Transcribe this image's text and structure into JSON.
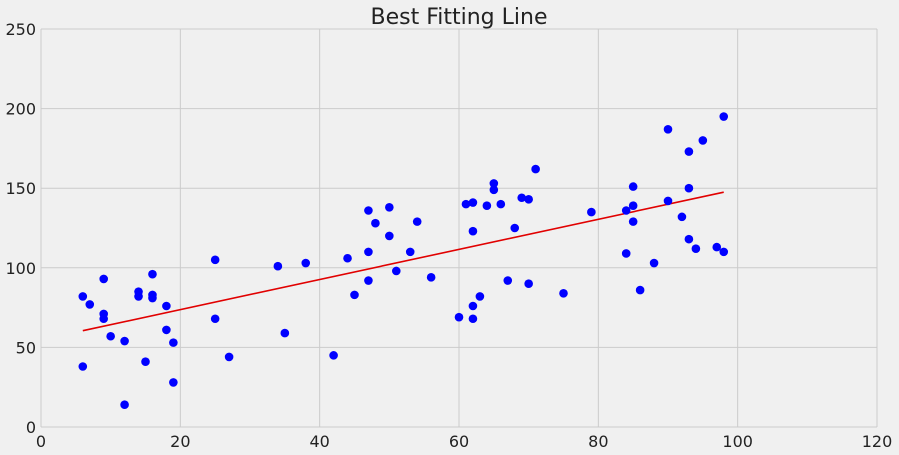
{
  "chart_data": {
    "type": "scatter",
    "title": "Best Fitting Line",
    "xlabel": "",
    "ylabel": "",
    "xlim": [
      0,
      120
    ],
    "ylim": [
      0,
      250
    ],
    "x_ticks": [
      0,
      20,
      40,
      60,
      80,
      100,
      120
    ],
    "y_ticks": [
      0,
      50,
      100,
      150,
      200,
      250
    ],
    "x_tick_labels": [
      "0",
      "20",
      "40",
      "60",
      "80",
      "100",
      "120"
    ],
    "y_tick_labels": [
      "0",
      "50",
      "100",
      "150",
      "200",
      "250"
    ],
    "grid": true,
    "colors": {
      "points": "#0000ff",
      "line": "#e10000",
      "grid": "#cbcbcb",
      "background": "#f0f0f0"
    },
    "series": [
      {
        "type": "scatter",
        "points": [
          [
            6,
            82
          ],
          [
            6,
            38
          ],
          [
            7,
            77
          ],
          [
            9,
            93
          ],
          [
            9,
            71
          ],
          [
            9,
            68
          ],
          [
            10,
            57
          ],
          [
            12,
            54
          ],
          [
            12,
            14
          ],
          [
            14,
            85
          ],
          [
            14,
            82
          ],
          [
            15,
            41
          ],
          [
            16,
            96
          ],
          [
            16,
            83
          ],
          [
            16,
            81
          ],
          [
            18,
            76
          ],
          [
            18,
            61
          ],
          [
            19,
            53
          ],
          [
            19,
            28
          ],
          [
            25,
            105
          ],
          [
            25,
            68
          ],
          [
            27,
            44
          ],
          [
            34,
            101
          ],
          [
            35,
            59
          ],
          [
            38,
            103
          ],
          [
            42,
            45
          ],
          [
            44,
            106
          ],
          [
            45,
            83
          ],
          [
            47,
            136
          ],
          [
            47,
            110
          ],
          [
            47,
            92
          ],
          [
            48,
            128
          ],
          [
            50,
            138
          ],
          [
            50,
            120
          ],
          [
            51,
            98
          ],
          [
            53,
            110
          ],
          [
            54,
            129
          ],
          [
            56,
            94
          ],
          [
            60,
            69
          ],
          [
            61,
            140
          ],
          [
            62,
            141
          ],
          [
            62,
            123
          ],
          [
            62,
            76
          ],
          [
            62,
            68
          ],
          [
            63,
            82
          ],
          [
            64,
            139
          ],
          [
            65,
            153
          ],
          [
            65,
            149
          ],
          [
            66,
            140
          ],
          [
            67,
            92
          ],
          [
            68,
            125
          ],
          [
            69,
            144
          ],
          [
            70,
            143
          ],
          [
            70,
            90
          ],
          [
            71,
            162
          ],
          [
            75,
            84
          ],
          [
            79,
            135
          ],
          [
            84,
            136
          ],
          [
            84,
            109
          ],
          [
            85,
            151
          ],
          [
            85,
            139
          ],
          [
            85,
            129
          ],
          [
            86,
            86
          ],
          [
            88,
            103
          ],
          [
            90,
            187
          ],
          [
            90,
            142
          ],
          [
            92,
            132
          ],
          [
            93,
            173
          ],
          [
            93,
            150
          ],
          [
            93,
            118
          ],
          [
            94,
            112
          ],
          [
            95,
            180
          ],
          [
            97,
            113
          ],
          [
            98,
            195
          ],
          [
            98,
            110
          ]
        ]
      },
      {
        "type": "line",
        "x": [
          6,
          98
        ],
        "y": [
          60.5,
          147.5
        ]
      }
    ]
  }
}
